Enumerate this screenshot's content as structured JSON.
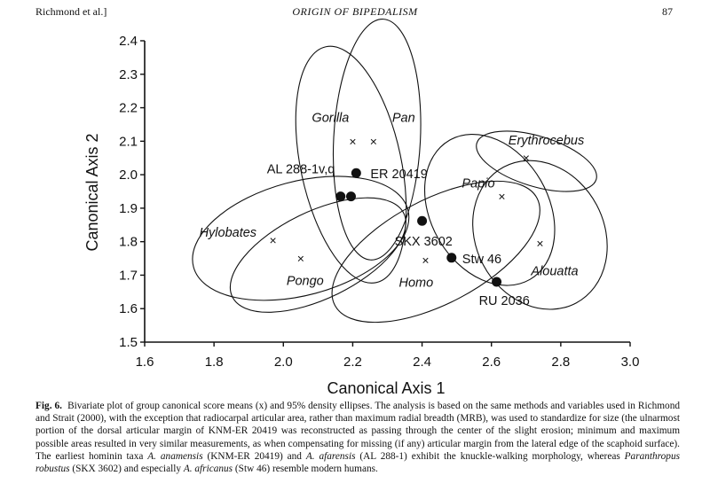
{
  "page": {
    "header_left": "Richmond et al.]",
    "header_center": "ORIGIN OF BIPEDALISM",
    "header_right": "87"
  },
  "caption": {
    "label": "Fig. 6.",
    "t1": "Bivariate plot of group canonical score means (x) and 95% density ellipses. The analysis is based on the same methods and variables used in Richmond and Strait (2000), with the exception that radiocarpal articular area, rather than maximum radial breadth (MRB), was used to standardize for size (the ulnarmost portion of the dorsal articular margin of KNM-ER 20419 was reconstructed as passing through the center of the slight erosion; minimum and maximum possible areas resulted in very similar measurements, as when compensating for missing (if any) articular margin from the lateral edge of the scaphoid surface). The earliest hominin taxa ",
    "i1": "A. anamensis",
    "t2": " (KNM-ER 20419) and ",
    "i2": "A. afarensis",
    "t3": " (AL 288-1) exhibit the knuckle-walking morphology, whereas ",
    "i3": "Paranthropus robustus",
    "t4": " (SKX 3602) and especially ",
    "i4": "A. africanus",
    "t5": " (Stw 46) resemble modern humans."
  },
  "chart_data": {
    "type": "scatter",
    "title": "",
    "xlabel": "Canonical Axis 1",
    "ylabel": "Canonical Axis 2",
    "xlim": [
      1.6,
      3.0
    ],
    "ylim": [
      1.5,
      2.4
    ],
    "xticks": [
      "1.6",
      "1.8",
      "2.0",
      "2.2",
      "2.4",
      "2.6",
      "2.8",
      "3.0"
    ],
    "yticks": [
      "1.5",
      "1.6",
      "1.7",
      "1.8",
      "1.9",
      "2.0",
      "2.1",
      "2.2",
      "2.3",
      "2.4"
    ],
    "grid": false,
    "group_means": [
      {
        "name": "Gorilla",
        "x": 2.2,
        "y": 2.1
      },
      {
        "name": "Pan",
        "x": 2.26,
        "y": 2.1
      },
      {
        "name": "Erythrocebus",
        "x": 2.7,
        "y": 2.05
      },
      {
        "name": "Papio",
        "x": 2.63,
        "y": 1.935
      },
      {
        "name": "Hylobates",
        "x": 1.97,
        "y": 1.805
      },
      {
        "name": "Pongo",
        "x": 2.05,
        "y": 1.75
      },
      {
        "name": "Homo",
        "x": 2.41,
        "y": 1.745
      },
      {
        "name": "Alouatta",
        "x": 2.74,
        "y": 1.795
      }
    ],
    "fossils": [
      {
        "name": "ER 20419",
        "x": 2.21,
        "y": 2.005
      },
      {
        "name": "AL 288-1v,q",
        "x": 2.165,
        "y": 1.935
      },
      {
        "name": "AL 288-1v,q",
        "x": 2.195,
        "y": 1.935
      },
      {
        "name": "SKX 3602",
        "x": 2.4,
        "y": 1.862
      },
      {
        "name": "Stw 46",
        "x": 2.485,
        "y": 1.752
      },
      {
        "name": "RU 2036",
        "x": 2.615,
        "y": 1.68
      }
    ],
    "density_ellipses": [
      {
        "group": "Gorilla",
        "cx": 2.195,
        "cy": 2.03,
        "width": 0.29,
        "height": 0.72,
        "angle": 12
      },
      {
        "group": "Pan",
        "cx": 2.27,
        "cy": 2.105,
        "width": 0.25,
        "height": 0.72,
        "angle": -3
      },
      {
        "group": "Erythrocebus",
        "cx": 2.73,
        "cy": 2.04,
        "width": 0.36,
        "height": 0.15,
        "angle": -17
      },
      {
        "group": "Papio",
        "cx": 2.595,
        "cy": 1.895,
        "width": 0.34,
        "height": 0.48,
        "angle": 30
      },
      {
        "group": "Alouatta",
        "cx": 2.74,
        "cy": 1.82,
        "width": 0.37,
        "height": 0.46,
        "angle": 28
      },
      {
        "group": "Hylobates",
        "cx": 2.05,
        "cy": 1.81,
        "width": 0.64,
        "height": 0.34,
        "angle": 15
      },
      {
        "group": "Pongo",
        "cx": 2.1,
        "cy": 1.76,
        "width": 0.55,
        "height": 0.26,
        "angle": 26
      },
      {
        "group": "Homo",
        "cx": 2.44,
        "cy": 1.77,
        "width": 0.66,
        "height": 0.31,
        "angle": 28
      }
    ]
  }
}
